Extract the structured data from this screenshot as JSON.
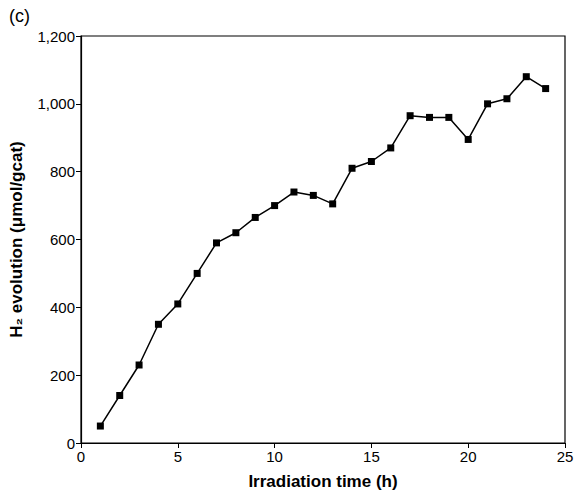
{
  "chart_data": {
    "type": "line",
    "panel_label": "(c)",
    "x_label": "Irradiation time (h)",
    "y_label": "H₂ evolution (μmol/gcat)",
    "x": [
      1,
      2,
      3,
      4,
      5,
      6,
      7,
      8,
      9,
      10,
      11,
      12,
      13,
      14,
      15,
      16,
      17,
      18,
      19,
      20,
      21,
      22,
      23,
      24
    ],
    "values": [
      50,
      140,
      230,
      350,
      410,
      500,
      590,
      620,
      665,
      700,
      740,
      730,
      705,
      810,
      830,
      870,
      965,
      960,
      960,
      895,
      1000,
      1015,
      1080,
      1045
    ],
    "color": "#000000",
    "marker": "square",
    "line_style": "solid",
    "xlim": [
      0,
      25
    ],
    "xticks": [
      0,
      5,
      10,
      15,
      20,
      25
    ],
    "ylim": [
      0,
      1200
    ],
    "yticks": [
      0,
      200,
      400,
      600,
      800,
      1000,
      1200
    ],
    "grid": false
  }
}
